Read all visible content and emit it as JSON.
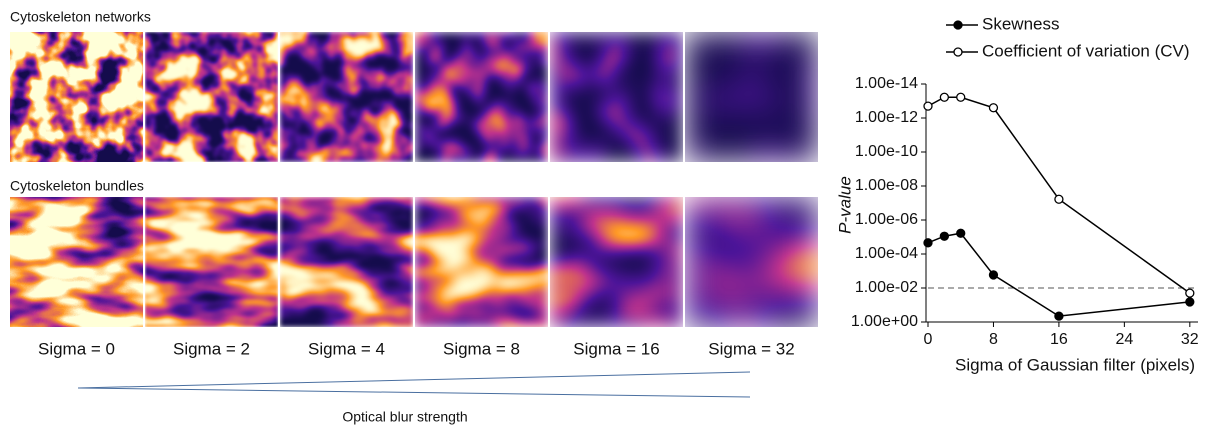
{
  "panel": {
    "row_titles": [
      "Cytoskeleton networks",
      "Cytoskeleton bundles"
    ],
    "column_labels": [
      "Sigma = 0",
      "Sigma = 2",
      "Sigma = 4",
      "Sigma = 8",
      "Sigma = 16",
      "Sigma = 32"
    ],
    "caption": "Optical blur strength"
  },
  "chart_data": {
    "type": "line",
    "log_y": true,
    "xlabel": "Sigma of Gaussian filter (pixels)",
    "ylabel": "P-value",
    "x": [
      0,
      2,
      4,
      8,
      16,
      32
    ],
    "series": [
      {
        "name": "Skewness",
        "color": "#000000",
        "marker": "filled",
        "values": [
          2.2e-05,
          9e-06,
          6e-06,
          0.0017,
          0.45,
          0.066
        ]
      },
      {
        "name": "Coefficient of variation (CV)",
        "color": "#000000",
        "marker": "open",
        "values": [
          2e-13,
          6e-14,
          6e-14,
          2.5e-13,
          6e-08,
          0.02
        ]
      }
    ],
    "reference_line": 0.01,
    "xlim": [
      0,
      33
    ],
    "xticks": [
      0,
      8,
      16,
      24,
      32
    ],
    "ylim": [
      1,
      1e-14
    ],
    "yticks": [
      {
        "value": 1,
        "label": "1.00e+00"
      },
      {
        "value": 0.01,
        "label": "1.00e-02"
      },
      {
        "value": 0.0001,
        "label": "1.00e-04"
      },
      {
        "value": 1e-06,
        "label": "1.00e-06"
      },
      {
        "value": 1e-08,
        "label": "1.00e-08"
      },
      {
        "value": 1e-10,
        "label": "1.00e-10"
      },
      {
        "value": 1e-12,
        "label": "1.00e-12"
      },
      {
        "value": 1e-14,
        "label": "1.00e-14"
      }
    ]
  }
}
